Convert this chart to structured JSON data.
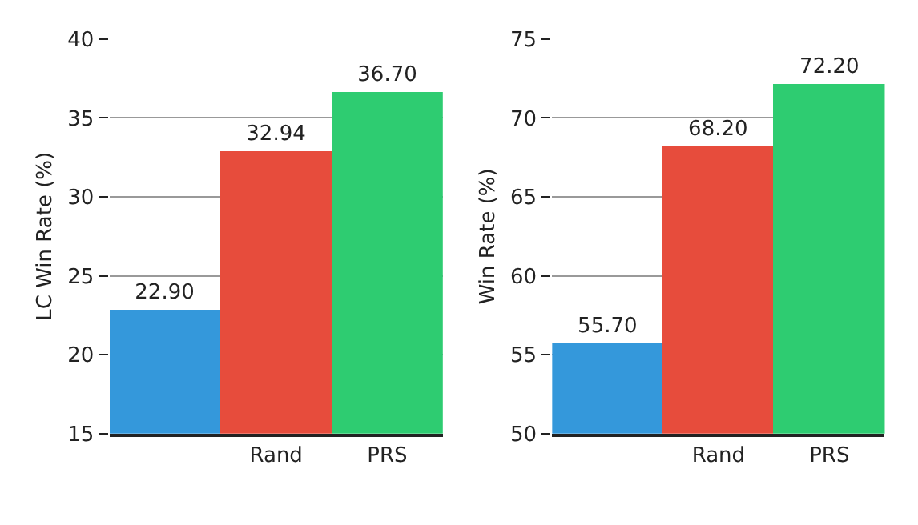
{
  "chart_data": [
    {
      "type": "bar",
      "ylabel": "LC Win Rate (%)",
      "categories": [
        null,
        "Rand",
        "PRS"
      ],
      "values": [
        22.9,
        32.94,
        36.7
      ],
      "value_labels": [
        "22.90",
        "32.94",
        "36.70"
      ],
      "colors": [
        "#3498db",
        "#e74c3c",
        "#2ecc71"
      ],
      "ylim": [
        15,
        40
      ],
      "yticks": [
        15,
        20,
        25,
        30,
        35,
        40
      ],
      "grid": "y"
    },
    {
      "type": "bar",
      "ylabel": "Win Rate (%)",
      "categories": [
        null,
        "Rand",
        "PRS"
      ],
      "values": [
        55.7,
        68.2,
        72.2
      ],
      "value_labels": [
        "55.70",
        "68.20",
        "72.20"
      ],
      "colors": [
        "#3498db",
        "#e74c3c",
        "#2ecc71"
      ],
      "ylim": [
        50,
        75
      ],
      "yticks": [
        50,
        55,
        60,
        65,
        70,
        75
      ],
      "grid": "y"
    }
  ]
}
